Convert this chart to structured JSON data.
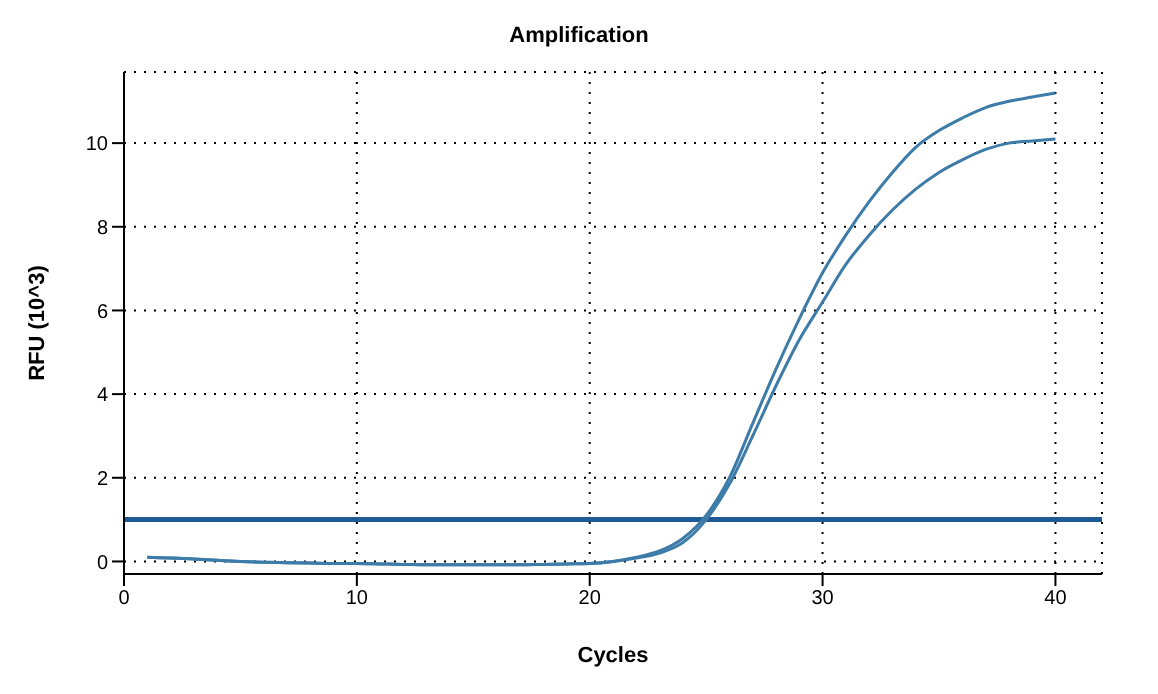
{
  "chart_data": {
    "type": "line",
    "title": "Amplification",
    "xlabel": "Cycles",
    "ylabel": "RFU (10^3)",
    "x": [
      1,
      2,
      3,
      4,
      5,
      6,
      7,
      8,
      9,
      10,
      11,
      12,
      13,
      14,
      15,
      16,
      17,
      18,
      19,
      20,
      21,
      22,
      23,
      24,
      25,
      26,
      27,
      28,
      29,
      30,
      31,
      32,
      33,
      34,
      35,
      36,
      37,
      38,
      39,
      40
    ],
    "series": [
      {
        "color": "#3d7ba8",
        "values": [
          0.1,
          0.08,
          0.06,
          0.03,
          0.0,
          -0.02,
          -0.03,
          -0.04,
          -0.05,
          -0.05,
          -0.06,
          -0.07,
          -0.08,
          -0.08,
          -0.08,
          -0.08,
          -0.08,
          -0.07,
          -0.06,
          -0.05,
          0.0,
          0.1,
          0.25,
          0.55,
          1.1,
          2.0,
          3.3,
          4.6,
          5.8,
          6.9,
          7.8,
          8.6,
          9.3,
          9.9,
          10.3,
          10.6,
          10.85,
          11.0,
          11.1,
          11.2
        ]
      },
      {
        "color": "#3d7ba8",
        "values": [
          0.1,
          0.08,
          0.06,
          0.03,
          0.0,
          -0.02,
          -0.03,
          -0.04,
          -0.05,
          -0.05,
          -0.06,
          -0.07,
          -0.08,
          -0.08,
          -0.08,
          -0.08,
          -0.08,
          -0.07,
          -0.06,
          -0.05,
          0.0,
          0.08,
          0.2,
          0.45,
          1.0,
          1.85,
          3.0,
          4.2,
          5.3,
          6.2,
          7.1,
          7.8,
          8.4,
          8.9,
          9.3,
          9.6,
          9.85,
          10.0,
          10.05,
          10.1
        ]
      }
    ],
    "xlim": [
      0,
      42
    ],
    "xticks": [
      0,
      10,
      20,
      30,
      40
    ],
    "ylim": [
      -0.3,
      11.7
    ],
    "yticks": [
      0,
      2,
      4,
      6,
      8,
      10
    ],
    "ref_lines": [
      {
        "axis": "y",
        "value": 1,
        "color": "#1f5a96"
      }
    ],
    "grid": true,
    "line_style": "solid",
    "marker": "none"
  }
}
